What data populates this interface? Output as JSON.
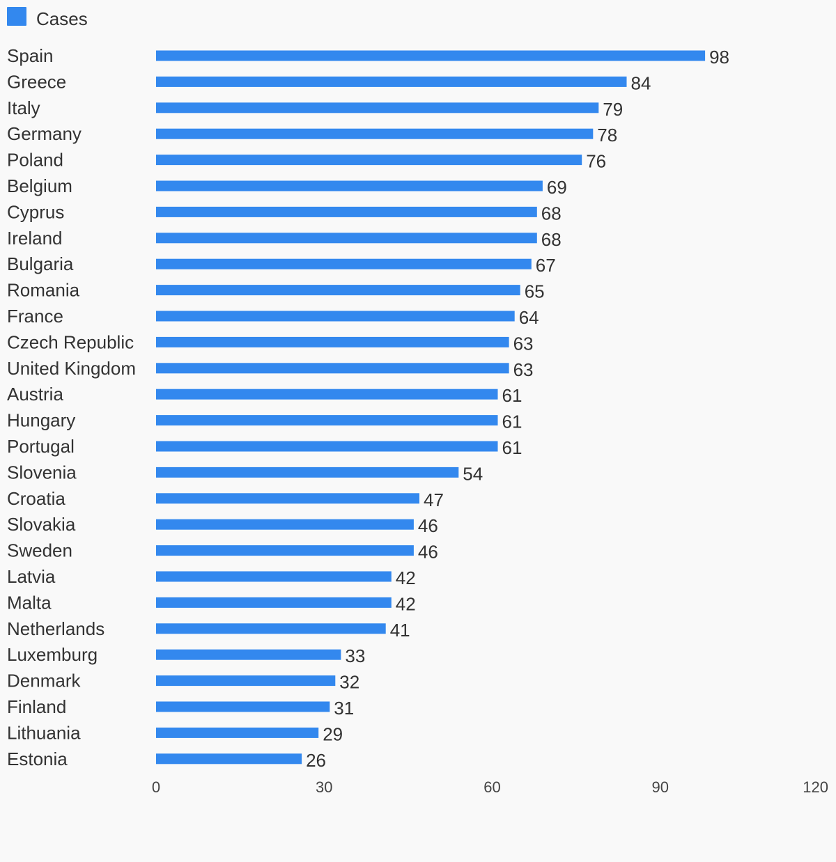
{
  "chart_data": {
    "type": "bar",
    "orientation": "horizontal",
    "legend": {
      "position": "top-left",
      "entries": [
        "Cases"
      ]
    },
    "categories": [
      "Spain",
      "Greece",
      "Italy",
      "Germany",
      "Poland",
      "Belgium",
      "Cyprus",
      "Ireland",
      "Bulgaria",
      "Romania",
      "France",
      "Czech Republic",
      "United Kingdom",
      "Austria",
      "Hungary",
      "Portugal",
      "Slovenia",
      "Croatia",
      "Slovakia",
      "Sweden",
      "Latvia",
      "Malta",
      "Netherlands",
      "Luxemburg",
      "Denmark",
      "Finland",
      "Lithuania",
      "Estonia"
    ],
    "series": [
      {
        "name": "Cases",
        "color": "#3388ee",
        "values": [
          98,
          84,
          79,
          78,
          76,
          69,
          68,
          68,
          67,
          65,
          64,
          63,
          63,
          61,
          61,
          61,
          54,
          47,
          46,
          46,
          42,
          42,
          41,
          33,
          32,
          31,
          29,
          26
        ]
      }
    ],
    "xlim": [
      0,
      120
    ],
    "xticks": [
      0,
      30,
      60,
      90,
      120
    ],
    "grid": false,
    "title": "",
    "xlabel": "",
    "ylabel": ""
  }
}
